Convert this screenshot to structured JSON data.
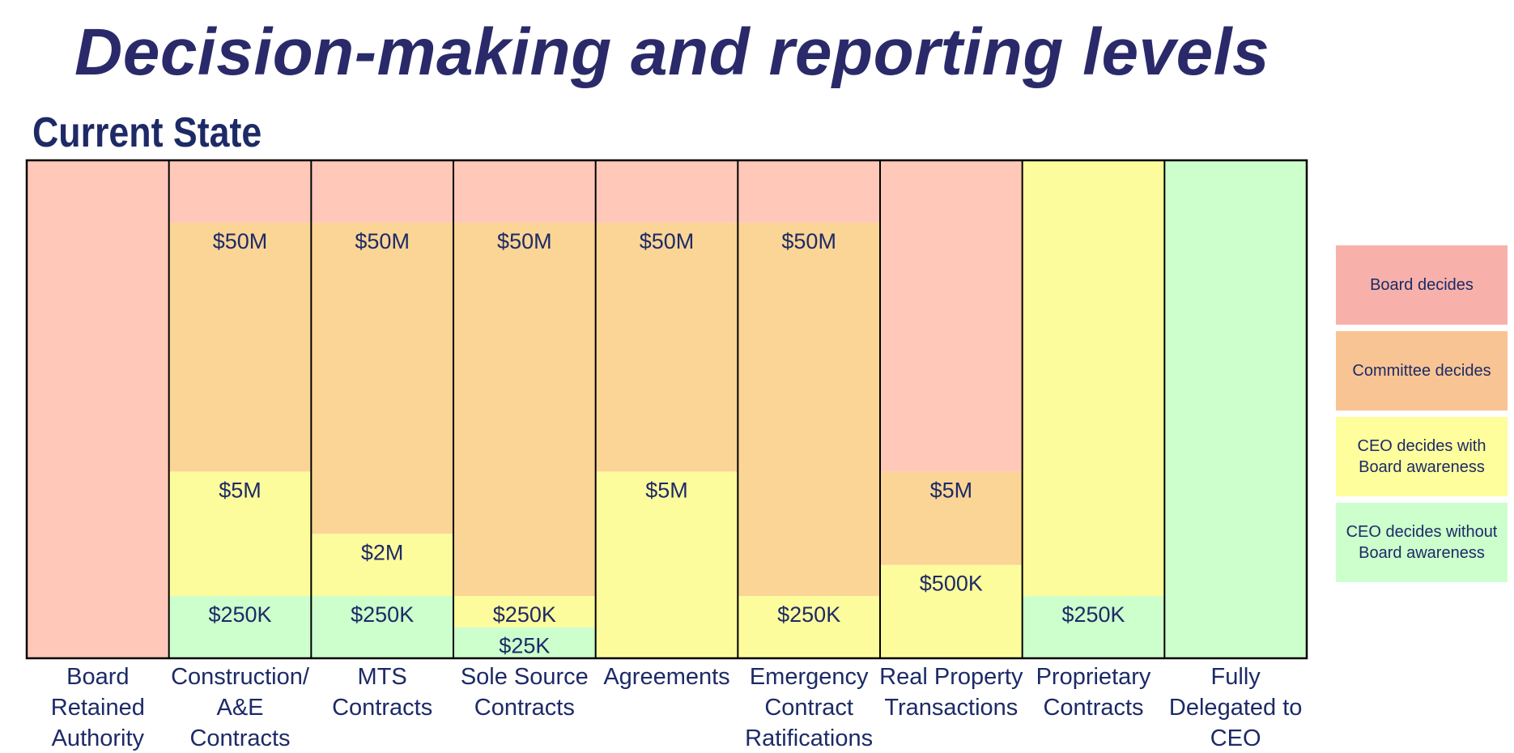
{
  "title": "Decision-making and reporting levels",
  "subtitle": "Current State",
  "colors": {
    "board": "#ffc8b8",
    "committee": "#fbd596",
    "ceo_aware": "#fdfc9c",
    "ceo_no": "#ccffcc",
    "frame": "#000000",
    "text": "#1d2a66"
  },
  "legend": [
    {
      "key": "board",
      "label": "Board decides",
      "color": "#f7b1aa"
    },
    {
      "key": "committee",
      "label": "Committee decides",
      "color": "#f8c493"
    },
    {
      "key": "ceo_aware",
      "label": "CEO decides with Board awareness",
      "color": "#fefe9d"
    },
    {
      "key": "ceo_no",
      "label": "CEO decides without Board awareness",
      "color": "#ccffcc"
    }
  ],
  "chart_data": {
    "type": "bar",
    "title": "Decision-making and reporting levels",
    "subtitle": "Current State",
    "stacking": "threshold bands, bottom to top",
    "levels": [
      "ceo_no",
      "ceo_aware",
      "committee",
      "board"
    ],
    "categories": [
      {
        "label": "Board Retained Authority",
        "lines": [
          "Board",
          "Retained",
          "Authority"
        ],
        "segments": [
          {
            "level": "board",
            "from": 0,
            "to": 16
          }
        ],
        "labels": []
      },
      {
        "label": "Construction/ A&E Contracts",
        "lines": [
          "Construction/",
          "A&E",
          "Contracts"
        ],
        "segments": [
          {
            "level": "ceo_no",
            "from": 0,
            "to": 2
          },
          {
            "level": "ceo_aware",
            "from": 2,
            "to": 6
          },
          {
            "level": "committee",
            "from": 6,
            "to": 14
          },
          {
            "level": "board",
            "from": 14,
            "to": 16
          }
        ],
        "labels": [
          {
            "text": "$250K",
            "at": 2
          },
          {
            "text": "$5M",
            "at": 6
          },
          {
            "text": "$50M",
            "at": 14
          }
        ]
      },
      {
        "label": "MTS Contracts",
        "lines": [
          "MTS",
          "Contracts"
        ],
        "segments": [
          {
            "level": "ceo_no",
            "from": 0,
            "to": 2
          },
          {
            "level": "ceo_aware",
            "from": 2,
            "to": 4
          },
          {
            "level": "committee",
            "from": 4,
            "to": 14
          },
          {
            "level": "board",
            "from": 14,
            "to": 16
          }
        ],
        "labels": [
          {
            "text": "$250K",
            "at": 2
          },
          {
            "text": "$2M",
            "at": 4
          },
          {
            "text": "$50M",
            "at": 14
          }
        ]
      },
      {
        "label": "Sole Source Contracts",
        "lines": [
          "Sole Source",
          "Contracts"
        ],
        "segments": [
          {
            "level": "ceo_no",
            "from": 0,
            "to": 1
          },
          {
            "level": "ceo_aware",
            "from": 1,
            "to": 2
          },
          {
            "level": "committee",
            "from": 2,
            "to": 14
          },
          {
            "level": "board",
            "from": 14,
            "to": 16
          }
        ],
        "labels": [
          {
            "text": "$25K",
            "at": 1
          },
          {
            "text": "$250K",
            "at": 2
          },
          {
            "text": "$50M",
            "at": 14
          }
        ]
      },
      {
        "label": "Agreements",
        "lines": [
          "Agreements"
        ],
        "segments": [
          {
            "level": "ceo_aware",
            "from": 0,
            "to": 6
          },
          {
            "level": "committee",
            "from": 6,
            "to": 14
          },
          {
            "level": "board",
            "from": 14,
            "to": 16
          }
        ],
        "labels": [
          {
            "text": "$5M",
            "at": 6
          },
          {
            "text": "$50M",
            "at": 14
          }
        ]
      },
      {
        "label": "Emergency Contract Ratifications",
        "lines": [
          "Emergency",
          "Contract",
          "Ratifications"
        ],
        "segments": [
          {
            "level": "ceo_aware",
            "from": 0,
            "to": 2
          },
          {
            "level": "committee",
            "from": 2,
            "to": 14
          },
          {
            "level": "board",
            "from": 14,
            "to": 16
          }
        ],
        "labels": [
          {
            "text": "$250K",
            "at": 2
          },
          {
            "text": "$50M",
            "at": 14
          }
        ]
      },
      {
        "label": "Real Property Transactions",
        "lines": [
          "Real Property",
          "Transactions"
        ],
        "segments": [
          {
            "level": "ceo_aware",
            "from": 0,
            "to": 3
          },
          {
            "level": "committee",
            "from": 3,
            "to": 6
          },
          {
            "level": "board",
            "from": 6,
            "to": 16
          }
        ],
        "labels": [
          {
            "text": "$500K",
            "at": 3
          },
          {
            "text": "$5M",
            "at": 6
          }
        ]
      },
      {
        "label": "Proprietary Contracts",
        "lines": [
          "Proprietary",
          "Contracts"
        ],
        "segments": [
          {
            "level": "ceo_no",
            "from": 0,
            "to": 2
          },
          {
            "level": "ceo_aware",
            "from": 2,
            "to": 16
          }
        ],
        "labels": [
          {
            "text": "$250K",
            "at": 2
          }
        ]
      },
      {
        "label": "Fully Delegated to CEO",
        "lines": [
          "Fully",
          "Delegated to",
          "CEO"
        ],
        "segments": [
          {
            "level": "ceo_no",
            "from": 0,
            "to": 16
          }
        ],
        "labels": []
      }
    ]
  }
}
